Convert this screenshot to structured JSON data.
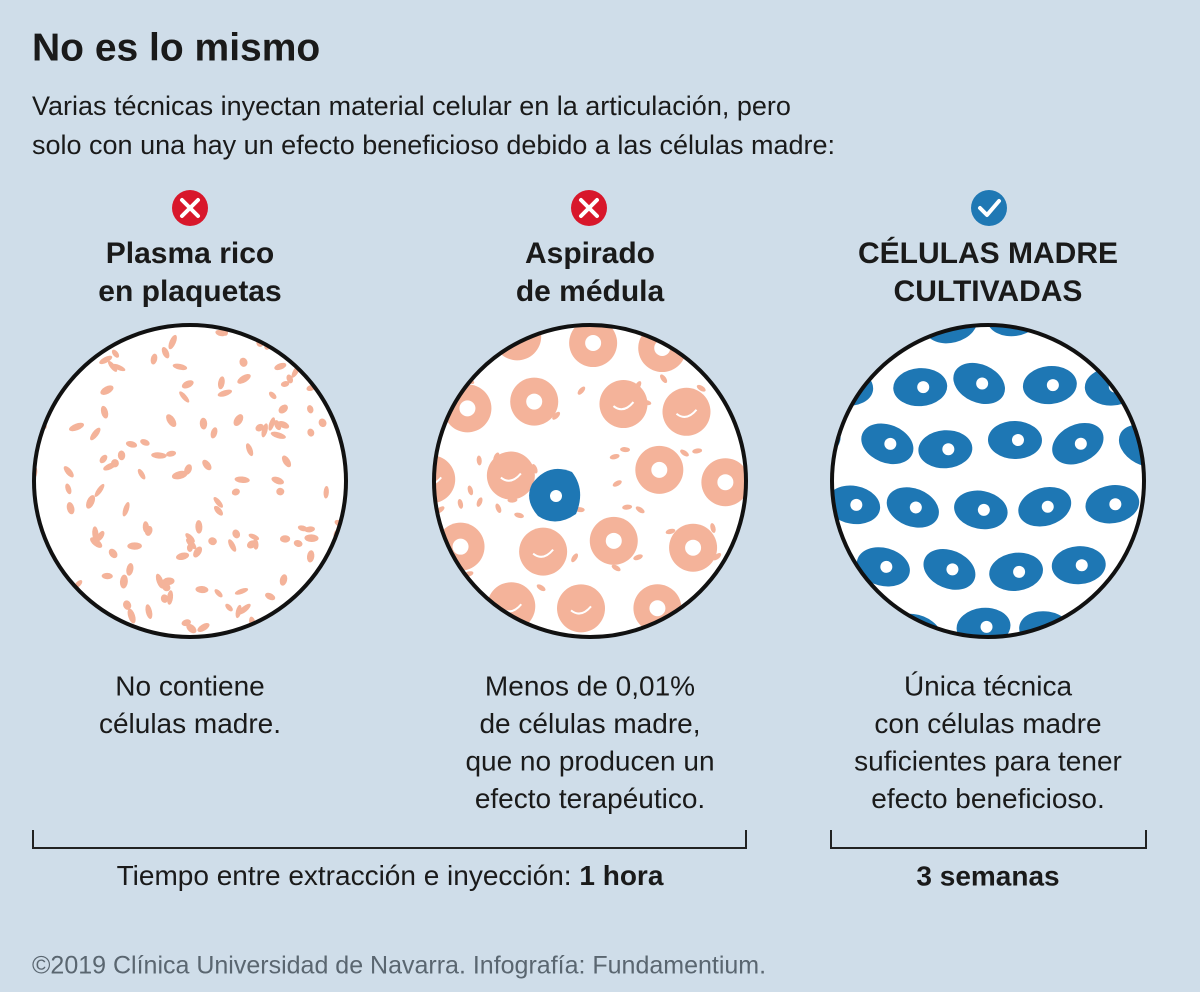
{
  "header": {
    "title": "No es lo mismo",
    "subtitle": [
      "Varias técnicas inyectan material celular en la articulación, pero",
      "solo con una hay un efecto beneficioso debido a las células madre:"
    ]
  },
  "columns": [
    {
      "heading": [
        "Plasma rico",
        "en plaquetas"
      ],
      "description": [
        "No contiene",
        "células madre."
      ]
    },
    {
      "heading": [
        "Aspirado",
        "de médula"
      ],
      "description": [
        "Menos de 0,01%",
        "de células madre,",
        "que no producen un",
        "efecto terapéutico."
      ]
    },
    {
      "heading": [
        "CÉLULAS MADRE",
        "CULTIVADAS"
      ],
      "description": [
        "Única técnica",
        "con células madre",
        "suficientes para tener",
        "efecto beneficioso."
      ]
    }
  ],
  "timing": {
    "label": "Tiempo entre extracción e inyección:",
    "value": "1 hora",
    "cultured": "3 semanas"
  },
  "footer": "©2019 Clínica Universidad de Navarra. Infografía: Fundamentium."
}
